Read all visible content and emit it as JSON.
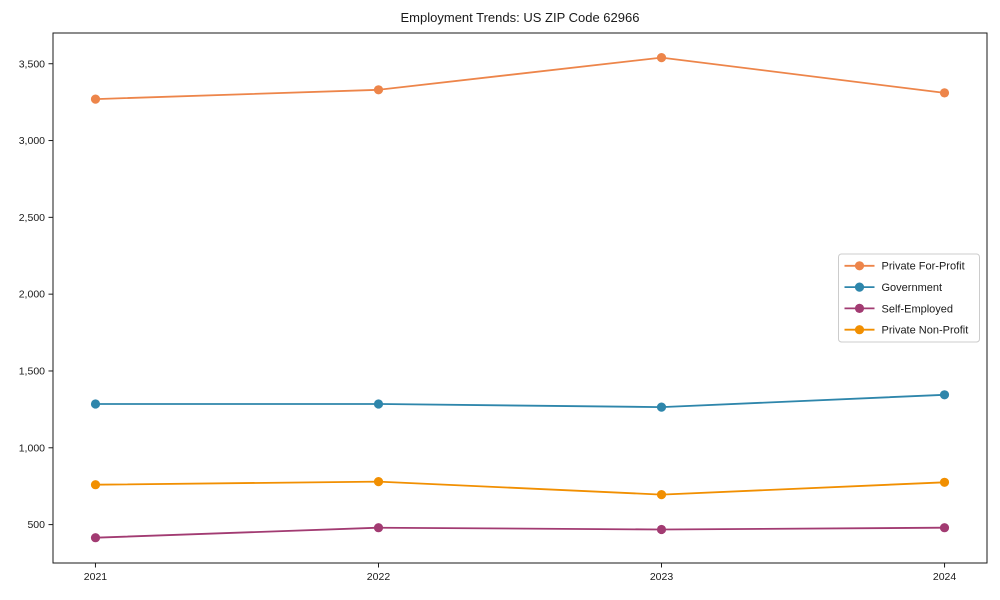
{
  "chart_data": {
    "type": "line",
    "title": "Employment Trends: US ZIP Code 62966",
    "x": [
      2021,
      2022,
      2023,
      2024
    ],
    "x_tick_labels": [
      "2021",
      "2022",
      "2023",
      "2024"
    ],
    "y_ticks": [
      {
        "value": 500,
        "label": "500"
      },
      {
        "value": 1000,
        "label": "1,000"
      },
      {
        "value": 1500,
        "label": "1,500"
      },
      {
        "value": 2000,
        "label": "2,000"
      },
      {
        "value": 2500,
        "label": "2,500"
      },
      {
        "value": 3000,
        "label": "3,000"
      },
      {
        "value": 3500,
        "label": "3,500"
      }
    ],
    "series": [
      {
        "name": "Private For-Profit",
        "color": "#ed854a",
        "values": [
          3270,
          3330,
          3540,
          3310
        ]
      },
      {
        "name": "Government",
        "color": "#2e86ab",
        "values": [
          1285,
          1285,
          1265,
          1345
        ]
      },
      {
        "name": "Self-Employed",
        "color": "#a23b72",
        "values": [
          415,
          480,
          468,
          480
        ]
      },
      {
        "name": "Private Non-Profit",
        "color": "#f18f01",
        "values": [
          760,
          780,
          695,
          775
        ]
      }
    ],
    "xlim": [
      2020.85,
      2024.15
    ],
    "ylim": [
      250,
      3700
    ],
    "grid": false,
    "legend_position": "center-right",
    "marker": "circle",
    "axis_color": "#1a1a1a",
    "legend_border_color": "#cccccc",
    "background_color": "#ffffff"
  }
}
